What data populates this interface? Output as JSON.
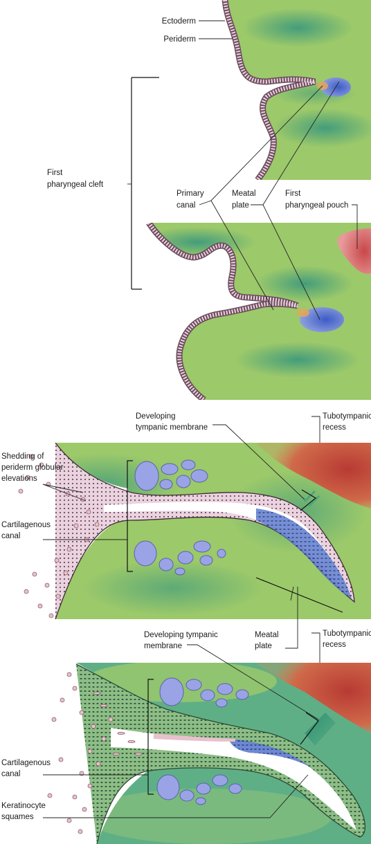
{
  "panel1": {
    "labels": {
      "ectoderm": "Ectoderm",
      "periderm": "Periderm",
      "first_cleft_1": "First",
      "first_cleft_2": "pharyngeal cleft",
      "primary_canal_1": "Primary",
      "primary_canal_2": "canal",
      "meatal_plate_1": "Meatal",
      "meatal_plate_2": "plate",
      "first_pouch_1": "First",
      "first_pouch_2": "pharyngeal pouch"
    }
  },
  "panel2": {
    "labels": {
      "dev_tm_1": "Developing",
      "dev_tm_2": "tympanic membrane",
      "tubo_1": "Tubotympanic",
      "tubo_2": "recess",
      "shed_1": "Shedding of",
      "shed_2": "periderm globular",
      "shed_3": "elevations",
      "cart_1": "Cartilagenous",
      "cart_2": "canal"
    }
  },
  "panel3": {
    "labels": {
      "dev_tm_1": "Developing tympanic",
      "dev_tm_2": "membrane",
      "meatal_1": "Meatal",
      "meatal_2": "plate",
      "tubo_1": "Tubotympanic",
      "tubo_2": "recess",
      "cart_1": "Cartilagenous",
      "cart_2": "canal",
      "kera_1": "Keratinocyte",
      "kera_2": "squames"
    }
  },
  "colors": {
    "mesenchyme_green": "#9cc96a",
    "mesenchyme_teal": "#4fa37c",
    "epithelium_pink": "#e6c7d6",
    "meatal_blue": "#4e6fc9",
    "cartilage_lavender": "#9aa3e6",
    "recess_red": "#c8483c"
  }
}
